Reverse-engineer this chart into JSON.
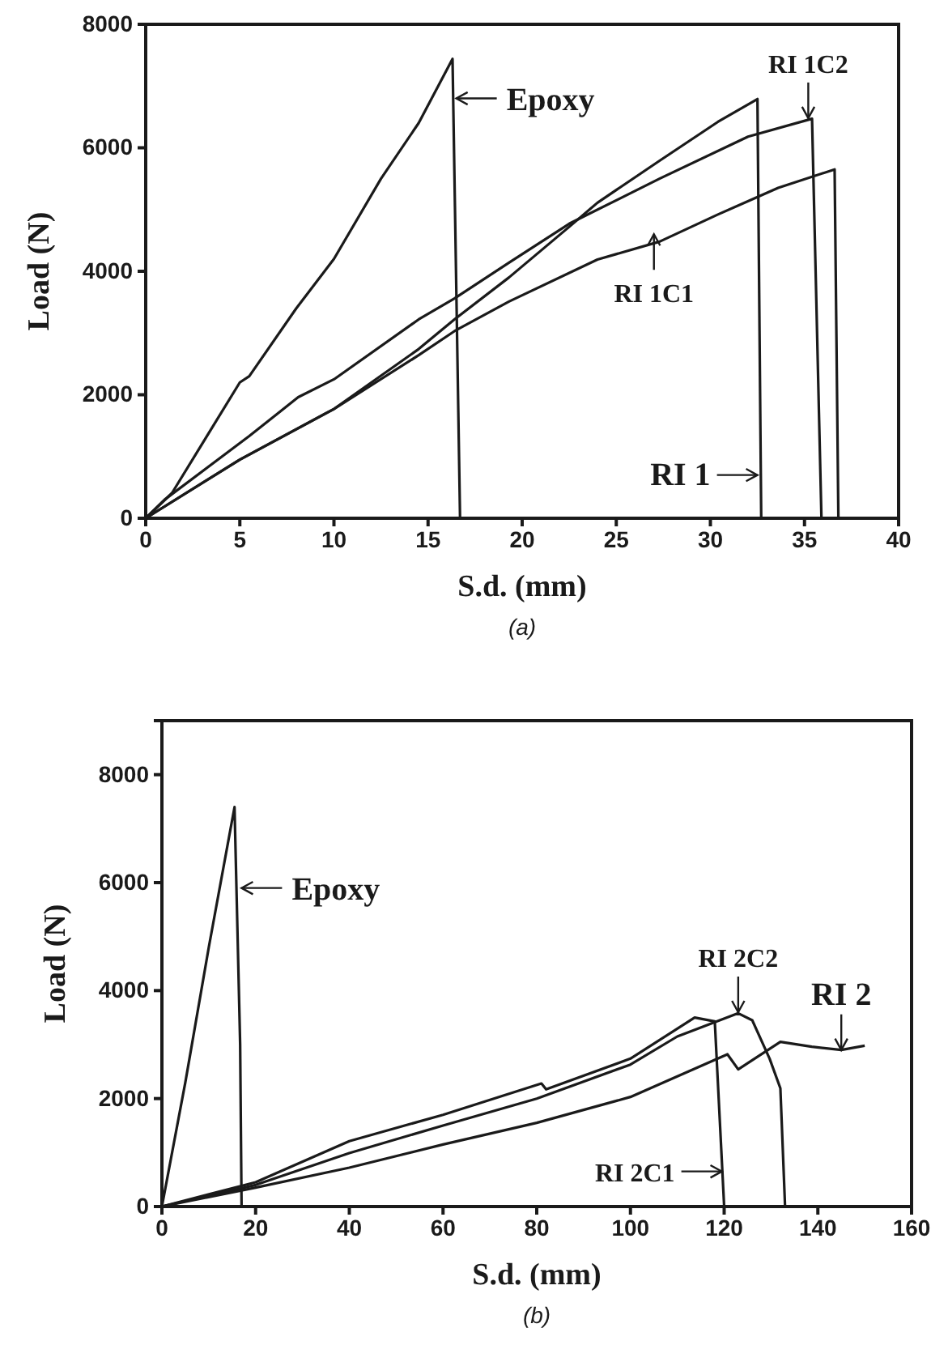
{
  "chart_data": [
    {
      "type": "line",
      "title": "(a)",
      "xlabel": "S.d. (mm)",
      "ylabel": "Load (N)",
      "xlim": [
        0,
        40
      ],
      "xticks": [
        0,
        5,
        10,
        15,
        20,
        25,
        30,
        35,
        40
      ],
      "ylim": [
        0,
        8000
      ],
      "yticks": [
        0,
        2000,
        4000,
        6000,
        8000
      ],
      "series": [
        {
          "color": "#1a1a1a",
          "x": [
            0,
            1.4,
            5,
            5.5,
            8,
            10,
            12.5,
            14.5,
            16.3,
            16.7
          ],
          "values": [
            0,
            410,
            2200,
            2300,
            3400,
            4200,
            5500,
            6400,
            7440,
            0
          ]
        },
        {
          "color": "#1a1a1a",
          "x": [
            0,
            1,
            5.5,
            8.1,
            10,
            14.5,
            16.4,
            19.3,
            22.5,
            27.3,
            32,
            35.4,
            35.9
          ],
          "values": [
            0,
            300,
            1330,
            1960,
            2250,
            3220,
            3560,
            4140,
            4770,
            5500,
            6180,
            6470,
            0
          ]
        },
        {
          "color": "#1a1a1a",
          "x": [
            0,
            5,
            10,
            14.5,
            16.4,
            19.3,
            22.5,
            24,
            27.3,
            30.4,
            32.5,
            32.7
          ],
          "values": [
            0,
            950,
            1770,
            2740,
            3220,
            3900,
            4720,
            5110,
            5790,
            6420,
            6790,
            0
          ]
        },
        {
          "color": "#1a1a1a",
          "x": [
            0,
            5,
            10,
            14.5,
            16.4,
            19.3,
            24,
            27.3,
            30.4,
            33.6,
            36.6,
            36.8
          ],
          "values": [
            0,
            950,
            1770,
            2640,
            3030,
            3510,
            4190,
            4480,
            4920,
            5350,
            5650,
            0
          ]
        }
      ],
      "annotations": [
        {
          "text": "Epoxy",
          "x": 16.5,
          "y": 6800
        },
        {
          "text": "RI 1C2",
          "x": 35.2,
          "y": 6480
        },
        {
          "text": "RI 1C1",
          "x": 27,
          "y": 4600
        },
        {
          "text": "RI 1",
          "x": 32.5,
          "y": 700
        }
      ]
    },
    {
      "type": "line",
      "title": "(b)",
      "xlabel": "S.d. (mm)",
      "ylabel": "Load (N)",
      "xlim": [
        0,
        160
      ],
      "xticks": [
        0,
        20,
        40,
        60,
        80,
        100,
        120,
        140,
        160
      ],
      "ylim": [
        0,
        9000
      ],
      "yticks": [
        0,
        2000,
        4000,
        6000,
        8000
      ],
      "series": [
        {
          "color": "#1a1a1a",
          "x": [
            0,
            5,
            10,
            15.5,
            16.7,
            17
          ],
          "values": [
            0,
            2300,
            4800,
            7400,
            3000,
            0
          ]
        },
        {
          "color": "#1a1a1a",
          "x": [
            0,
            20,
            40,
            60,
            81,
            82,
            100,
            113.7,
            118,
            120
          ],
          "values": [
            0,
            450,
            1210,
            1700,
            2280,
            2170,
            2740,
            3500,
            3430,
            0
          ]
        },
        {
          "color": "#1a1a1a",
          "x": [
            0,
            20,
            40,
            60,
            80,
            100,
            110,
            123,
            126,
            129.7,
            132,
            133
          ],
          "values": [
            0,
            400,
            990,
            1500,
            2000,
            2630,
            3150,
            3580,
            3450,
            2740,
            2190,
            0
          ]
        },
        {
          "color": "#1a1a1a",
          "x": [
            0,
            20,
            40,
            60,
            80,
            100,
            120.7,
            123,
            126.5,
            132,
            138.7,
            145,
            150
          ],
          "values": [
            0,
            350,
            720,
            1150,
            1550,
            2030,
            2820,
            2540,
            2740,
            3050,
            2960,
            2900,
            2980
          ]
        }
      ],
      "annotations": [
        {
          "text": "Epoxy",
          "x": 17,
          "y": 5900
        },
        {
          "text": "RI 2C2",
          "x": 123,
          "y": 3600
        },
        {
          "text": "RI 2",
          "x": 145,
          "y": 2900
        },
        {
          "text": "RI 2C1",
          "x": 119.5,
          "y": 650
        }
      ]
    }
  ]
}
